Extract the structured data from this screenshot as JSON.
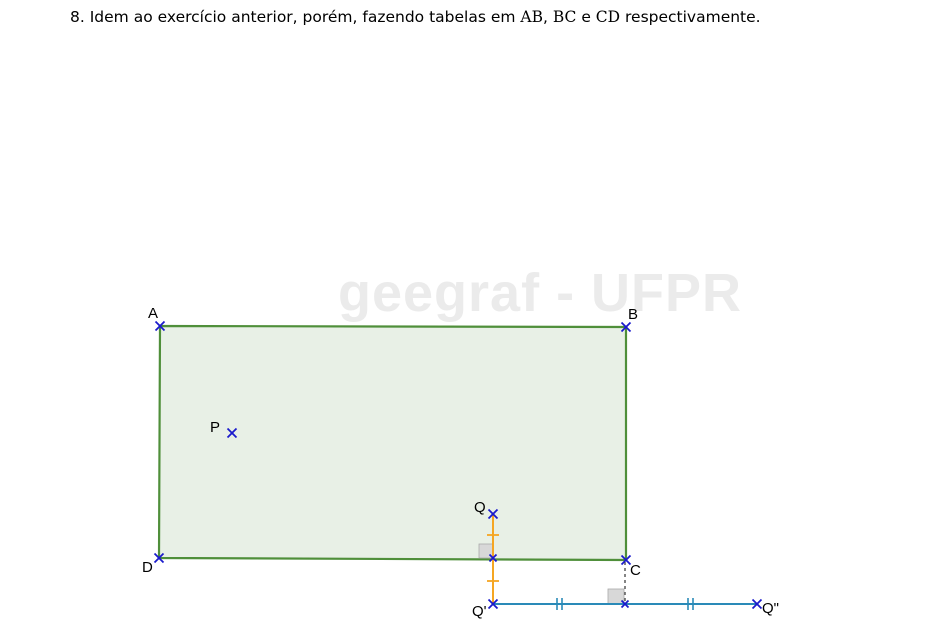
{
  "exercise": {
    "number": "8.",
    "text_before": " Idem ao exercício anterior, porém, fazendo tabelas em ",
    "seg_ab": "AB",
    "sep_1": ", ",
    "seg_bc": "BC",
    "sep_2": " e ",
    "seg_cd": "CD",
    "text_after": " respectivamente."
  },
  "watermark": "geegraf - UFPR",
  "colors": {
    "rectangle_stroke": "#4f8f3a",
    "rectangle_fill": "#e8f0e6",
    "point": "#1a1acc",
    "segment_qq1": "#f5a623",
    "segment_q1q2": "#2a8ab8",
    "right_angle_fill": "#d8d8d8"
  },
  "points": {
    "A": "A",
    "B": "B",
    "C": "C",
    "D": "D",
    "P": "P",
    "Q": "Q",
    "Q1": "Q'",
    "Q2": "Q\""
  }
}
